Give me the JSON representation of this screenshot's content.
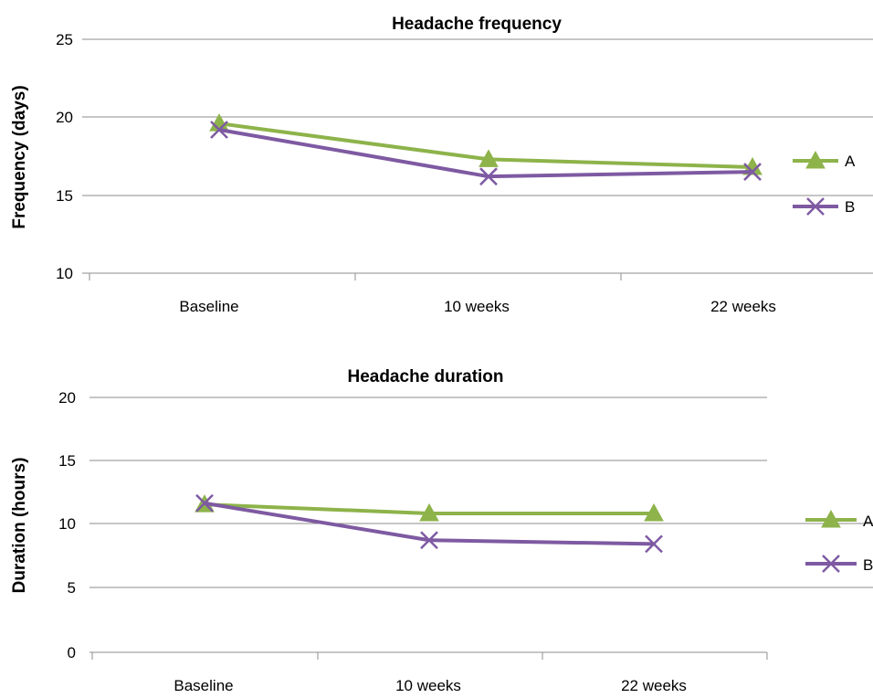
{
  "chart_data": [
    {
      "type": "line",
      "title": "Headache frequency",
      "xlabel": "",
      "ylabel": "Frequency (days)",
      "categories": [
        "Baseline",
        "10 weeks",
        "22 weeks"
      ],
      "ylim": [
        10,
        25
      ],
      "yticks": [
        "10",
        "15",
        "20",
        "25"
      ],
      "grid": true,
      "legend_position": "right",
      "series": [
        {
          "name": "A",
          "values": [
            19.6,
            17.3,
            16.8
          ],
          "color": "#8db34a",
          "marker": "triangle"
        },
        {
          "name": "B",
          "values": [
            19.2,
            16.2,
            16.5
          ],
          "color": "#7e5aa2",
          "marker": "x"
        }
      ]
    },
    {
      "type": "line",
      "title": "Headache duration",
      "xlabel": "",
      "ylabel": "Duration (hours)",
      "categories": [
        "Baseline",
        "10 weeks",
        "22 weeks"
      ],
      "ylim": [
        0,
        20
      ],
      "yticks": [
        "0",
        "5",
        "10",
        "15",
        "20"
      ],
      "grid": true,
      "legend_position": "right",
      "series": [
        {
          "name": "A",
          "values": [
            11.6,
            10.9,
            10.9
          ],
          "color": "#8db34a",
          "marker": "triangle"
        },
        {
          "name": "B",
          "values": [
            11.7,
            8.8,
            8.5
          ],
          "color": "#7e5aa2",
          "marker": "x"
        }
      ]
    }
  ]
}
